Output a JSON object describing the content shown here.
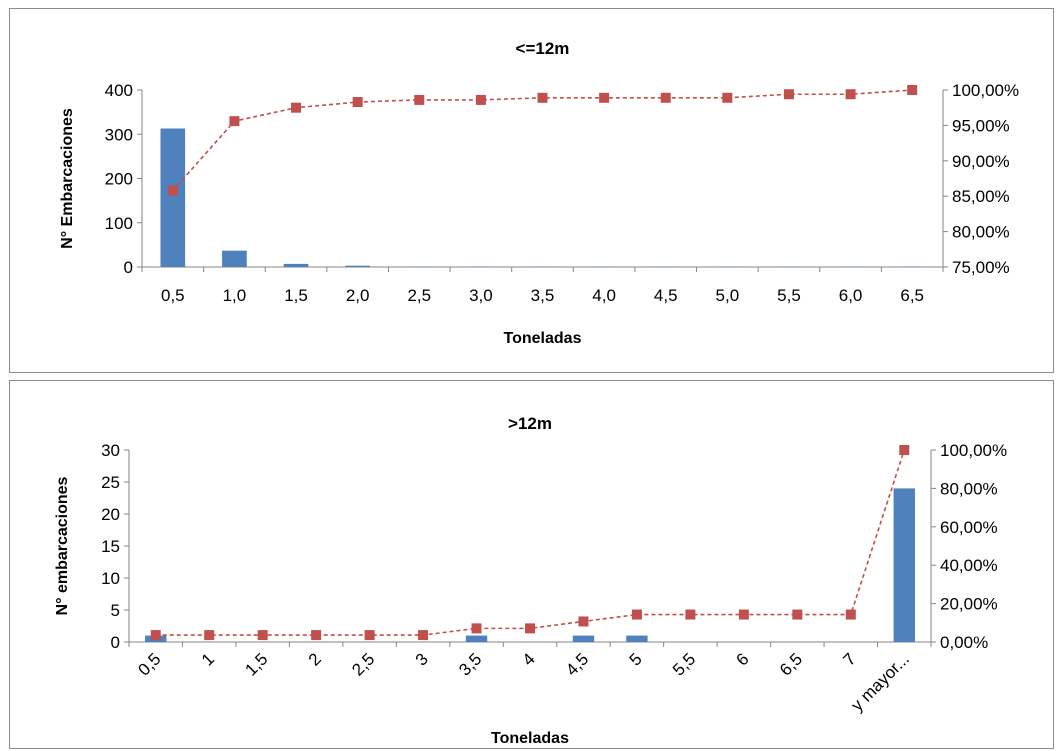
{
  "colors": {
    "bar": "#4f81bd",
    "line": "#c0504d",
    "axis": "#868686"
  },
  "chart_data": [
    {
      "type": "bar",
      "title": "<=12m",
      "xlabel": "Toneladas",
      "ylabel": "N° Embarcaciones",
      "categories": [
        "0,5",
        "1,0",
        "1,5",
        "2,0",
        "2,5",
        "3,0",
        "3,5",
        "4,0",
        "4,5",
        "5,0",
        "5,5",
        "6,0",
        "6,5"
      ],
      "ylim": [
        0,
        400
      ],
      "yticks": [
        "0",
        "100",
        "200",
        "300",
        "400"
      ],
      "y2lim": [
        75,
        100
      ],
      "y2ticks": [
        "75,00%",
        "80,00%",
        "85,00%",
        "90,00%",
        "95,00%",
        "100,00%"
      ],
      "series": [
        {
          "kind": "bar",
          "axis": "left",
          "values": [
            313,
            37,
            7,
            3,
            1,
            1,
            1,
            1,
            1,
            1,
            1,
            1,
            1
          ]
        },
        {
          "kind": "line",
          "axis": "right",
          "values": [
            85.8,
            95.6,
            97.5,
            98.3,
            98.6,
            98.6,
            98.9,
            98.9,
            98.9,
            98.9,
            99.4,
            99.4,
            100
          ]
        }
      ]
    },
    {
      "type": "bar",
      "title": ">12m",
      "xlabel": "Toneladas",
      "ylabel": "N° embarcaciones",
      "categories": [
        "0,5",
        "1",
        "1,5",
        "2",
        "2,5",
        "3",
        "3,5",
        "4",
        "4,5",
        "5",
        "5,5",
        "6",
        "6,5",
        "7",
        "y mayor..."
      ],
      "ylim": [
        0,
        30
      ],
      "yticks": [
        "0",
        "5",
        "10",
        "15",
        "20",
        "25",
        "30"
      ],
      "y2lim": [
        0,
        100
      ],
      "y2ticks": [
        "0,00%",
        "20,00%",
        "40,00%",
        "60,00%",
        "80,00%",
        "100,00%"
      ],
      "series": [
        {
          "kind": "bar",
          "axis": "left",
          "values": [
            1,
            0,
            0,
            0,
            0,
            0,
            1,
            0,
            1,
            1,
            0,
            0,
            0,
            0,
            24
          ]
        },
        {
          "kind": "line",
          "axis": "right",
          "values": [
            3.6,
            3.6,
            3.6,
            3.6,
            3.6,
            3.6,
            7.1,
            7.1,
            10.7,
            14.3,
            14.3,
            14.3,
            14.3,
            14.3,
            100
          ]
        }
      ]
    }
  ]
}
